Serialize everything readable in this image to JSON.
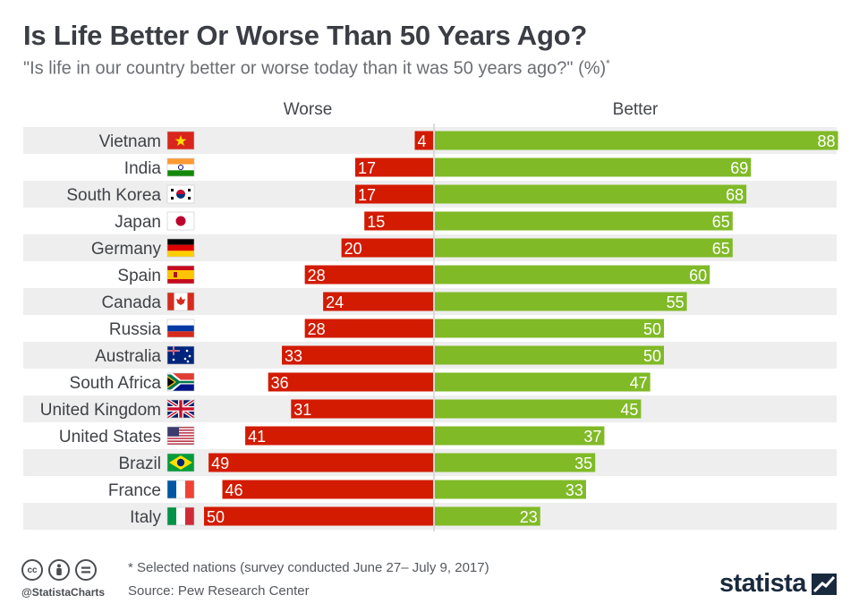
{
  "header": {
    "title": "Is Life Better Or Worse Than 50 Years Ago?",
    "subtitle": "\"Is life in our country better or worse today than it was 50 years ago?\" (%)",
    "subtitle_mark": "*"
  },
  "footer": {
    "note": "* Selected nations (survey conducted June 27– July 9, 2017)",
    "source": "Source: Pew Research Center",
    "handle": "@StatistaCharts",
    "brand": "statista",
    "license_icons": [
      "cc-icon",
      "by-icon",
      "equals-icon"
    ]
  },
  "chart_data": {
    "type": "bar",
    "orientation": "horizontal-diverging",
    "categories": [
      "Vietnam",
      "India",
      "South Korea",
      "Japan",
      "Germany",
      "Spain",
      "Canada",
      "Russia",
      "Australia",
      "South Africa",
      "United Kingdom",
      "United States",
      "Brazil",
      "France",
      "Italy"
    ],
    "series": [
      {
        "name": "Worse",
        "values": [
          4,
          17,
          17,
          15,
          20,
          28,
          24,
          28,
          33,
          36,
          31,
          41,
          49,
          46,
          50
        ],
        "color": "#d21b00"
      },
      {
        "name": "Better",
        "values": [
          88,
          69,
          68,
          65,
          65,
          60,
          55,
          50,
          50,
          47,
          45,
          37,
          35,
          33,
          23
        ],
        "color": "#80ba27"
      }
    ],
    "flags": [
      "flag-vietnam-icon",
      "flag-india-icon",
      "flag-south-korea-icon",
      "flag-japan-icon",
      "flag-germany-icon",
      "flag-spain-icon",
      "flag-canada-icon",
      "flag-russia-icon",
      "flag-australia-icon",
      "flag-south-africa-icon",
      "flag-united-kingdom-icon",
      "flag-united-states-icon",
      "flag-brazil-icon",
      "flag-france-icon",
      "flag-italy-icon"
    ],
    "legend": "top",
    "grid": false,
    "row_stripe_color": "#eeeeee",
    "label_color": "#ffffff"
  }
}
